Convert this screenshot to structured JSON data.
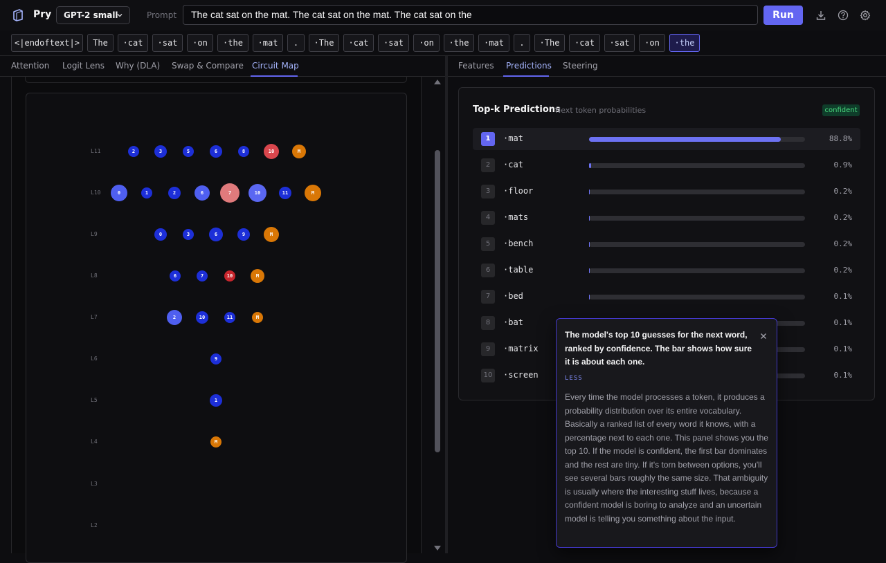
{
  "header": {
    "brand": "Pry",
    "model": "GPT-2 small",
    "prompt_label": "Prompt",
    "prompt_value": "The cat sat on the mat. The cat sat on the mat. The cat sat on the",
    "run_label": "Run"
  },
  "tokens": [
    "<|endoftext|>",
    "The",
    "·cat",
    "·sat",
    "·on",
    "·the",
    "·mat",
    ".",
    "·The",
    "·cat",
    "·sat",
    "·on",
    "·the",
    "·mat",
    ".",
    "·The",
    "·cat",
    "·sat",
    "·on",
    "·the"
  ],
  "left_tabs": [
    "Attention",
    "Logit Lens",
    "Why (DLA)",
    "Swap & Compare",
    "Circuit Map"
  ],
  "right_tabs": [
    "Features",
    "Predictions",
    "Steering"
  ],
  "circuit": {
    "layers": [
      {
        "label": "L11",
        "nodes": [
          {
            "t": "2"
          },
          {
            "t": "3"
          },
          {
            "t": "5"
          },
          {
            "t": "6"
          },
          {
            "t": "8"
          },
          {
            "t": "10"
          },
          {
            "t": "M"
          }
        ]
      },
      {
        "label": "L10",
        "nodes": [
          {
            "t": "0"
          },
          {
            "t": "1"
          },
          {
            "t": "2"
          },
          {
            "t": "6"
          },
          {
            "t": "7"
          },
          {
            "t": "10"
          },
          {
            "t": "11"
          },
          {
            "t": "M"
          }
        ]
      },
      {
        "label": "L9",
        "nodes": [
          {
            "t": "0"
          },
          {
            "t": "3"
          },
          {
            "t": "6"
          },
          {
            "t": "9"
          },
          {
            "t": "M"
          }
        ]
      },
      {
        "label": "L8",
        "nodes": [
          {
            "t": "6"
          },
          {
            "t": "7"
          },
          {
            "t": "10"
          },
          {
            "t": "M"
          }
        ]
      },
      {
        "label": "L7",
        "nodes": [
          {
            "t": "2"
          },
          {
            "t": "10"
          },
          {
            "t": "11"
          },
          {
            "t": "M"
          }
        ]
      },
      {
        "label": "L6",
        "nodes": [
          {
            "t": "9"
          }
        ]
      },
      {
        "label": "L5",
        "nodes": [
          {
            "t": "1"
          }
        ]
      },
      {
        "label": "L4",
        "nodes": [
          {
            "t": "M"
          }
        ]
      },
      {
        "label": "L3",
        "nodes": []
      },
      {
        "label": "L2",
        "nodes": []
      }
    ]
  },
  "predictions": {
    "title": "Top-k Predictions",
    "subtitle": "Next token probabilities",
    "badge": "confident",
    "rows": [
      {
        "rank": "1",
        "token": "·mat",
        "pct": "88.8%",
        "value": 88.8
      },
      {
        "rank": "2",
        "token": "·cat",
        "pct": "0.9%",
        "value": 0.9
      },
      {
        "rank": "3",
        "token": "·floor",
        "pct": "0.2%",
        "value": 0.2
      },
      {
        "rank": "4",
        "token": "·mats",
        "pct": "0.2%",
        "value": 0.2
      },
      {
        "rank": "5",
        "token": "·bench",
        "pct": "0.2%",
        "value": 0.2
      },
      {
        "rank": "6",
        "token": "·table",
        "pct": "0.2%",
        "value": 0.2
      },
      {
        "rank": "7",
        "token": "·bed",
        "pct": "0.1%",
        "value": 0.1
      },
      {
        "rank": "8",
        "token": "·bat",
        "pct": "0.1%",
        "value": 0.1
      },
      {
        "rank": "9",
        "token": "·matrix",
        "pct": "0.1%",
        "value": 0.1
      },
      {
        "rank": "10",
        "token": "·screen",
        "pct": "0.1%",
        "value": 0.1
      }
    ]
  },
  "tooltip": {
    "title": "The model's top 10 guesses for the next word, ranked by confidence. The bar shows how sure it is about each one.",
    "less": "LESS",
    "body": "Every time the model processes a token, it produces a probability distribution over its entire vocabulary. Basically a ranked list of every word it knows, with a percentage next to each one. This panel shows you the top 10. If the model is confident, the first bar dominates and the rest are tiny. If it's torn between options, you'll see several bars roughly the same size. That ambiguity is usually where the interesting stuff lives, because a confident model is boring to analyze and an uncertain model is telling you something about the input."
  }
}
